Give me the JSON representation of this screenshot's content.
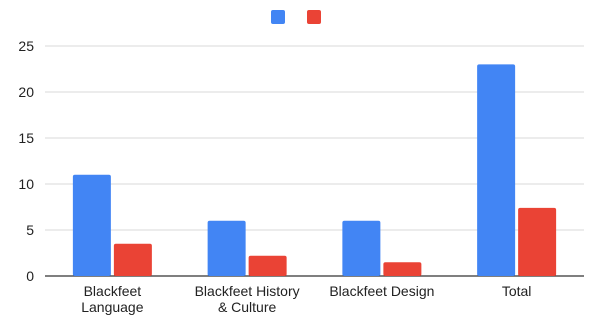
{
  "chart_data": {
    "type": "bar",
    "categories": [
      [
        "Blackfeet",
        "Language"
      ],
      [
        "Blackfeet History",
        "& Culture"
      ],
      [
        "Blackfeet Design"
      ],
      [
        "Total"
      ]
    ],
    "series": [
      {
        "color": "#4285f4",
        "values": [
          11,
          6,
          6,
          23
        ]
      },
      {
        "color": "#ea4335",
        "values": [
          3.5,
          2.2,
          1.5,
          7.4
        ]
      }
    ],
    "ylim": [
      0,
      25
    ],
    "yticks": [
      0,
      5,
      10,
      15,
      20,
      25
    ],
    "grid": true,
    "legend": "top-center"
  }
}
